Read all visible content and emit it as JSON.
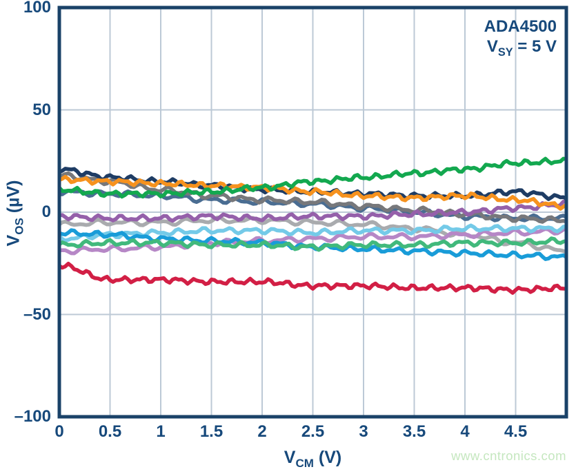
{
  "annotation": {
    "line1": "ADA4500",
    "line2_base": "V",
    "line2_sub": "SY",
    "line2_rest": " = 5 V"
  },
  "x_axis": {
    "base": "V",
    "sub": "CM",
    "unit": " (V)"
  },
  "y_axis": {
    "base": "V",
    "sub": "OS",
    "unit": "  (µV)"
  },
  "watermark": "www.cntronics.com",
  "colors": {
    "axis_border": "#1a4268",
    "text": "#17497b",
    "gridline": "#bcc9d6",
    "watermark": "#c5e7bf",
    "background": "#ffffff"
  },
  "chart_data": {
    "type": "line",
    "title": "",
    "xlabel": "V_CM (V)",
    "ylabel": "V_OS (uV)",
    "xlim": [
      0,
      5
    ],
    "ylim": [
      -100,
      100
    ],
    "grid": true,
    "x_grid_step": 0.5,
    "y_grid_step": 50,
    "legend": "none",
    "x_tick_labels": [
      "0",
      "0.5",
      "1",
      "1.5",
      "2",
      "2.5",
      "3",
      "3.5",
      "4",
      "4.5"
    ],
    "x_tick_values": [
      0,
      0.5,
      1,
      1.5,
      2,
      2.5,
      3,
      3.5,
      4,
      4.5
    ],
    "y_tick_labels": [
      "100",
      "50",
      "0",
      "–50",
      "–100"
    ],
    "y_tick_values": [
      100,
      50,
      0,
      -50,
      -100
    ],
    "x_values": [
      0,
      0.5,
      1,
      1.5,
      2,
      2.5,
      3,
      3.5,
      4,
      4.5,
      5
    ],
    "series": [
      {
        "name": "unit-lightgray",
        "color": "#a9abae",
        "values": [
          -6,
          -5,
          -5,
          -4,
          -4,
          -5,
          -6,
          -8,
          -11,
          -15,
          -19
        ]
      },
      {
        "name": "unit-orchid",
        "color": "#b687c6",
        "values": [
          -19,
          -18,
          -17,
          -15,
          -14,
          -13,
          -12,
          -12,
          -11,
          -10,
          -9
        ]
      },
      {
        "name": "unit-slate",
        "color": "#4a6d92",
        "values": [
          10,
          9,
          8,
          6,
          5,
          4,
          2,
          0,
          -2,
          -3,
          -3
        ]
      },
      {
        "name": "unit-gray",
        "color": "#77787b",
        "values": [
          18,
          15,
          11,
          8,
          6,
          5,
          3,
          1,
          -1,
          -3,
          -4
        ]
      },
      {
        "name": "unit-skyblue",
        "color": "#74cae8",
        "values": [
          -13,
          -11,
          -10,
          -9,
          -9,
          -10,
          -9,
          -9,
          -8,
          -8,
          -8
        ]
      },
      {
        "name": "unit-cyan",
        "color": "#199cd8",
        "values": [
          -10,
          -11,
          -13,
          -14,
          -15,
          -17,
          -18,
          -19,
          -20,
          -21,
          -22
        ]
      },
      {
        "name": "unit-mediumgreen",
        "color": "#41b97c",
        "values": [
          -16,
          -15,
          -15,
          -16,
          -16,
          -17,
          -16,
          -16,
          -15,
          -15,
          -14
        ]
      },
      {
        "name": "unit-purple",
        "color": "#9560aa",
        "values": [
          -2,
          -3,
          -3,
          -2,
          -3,
          -2,
          -2,
          -1,
          0,
          2,
          4
        ]
      },
      {
        "name": "unit-navy",
        "color": "#1e3c64",
        "values": [
          21,
          17,
          15,
          13,
          11,
          10,
          9,
          8,
          8,
          10,
          7
        ]
      },
      {
        "name": "unit-orange",
        "color": "#f6921e",
        "values": [
          16,
          15,
          14,
          13,
          12,
          10,
          8,
          7,
          8,
          6,
          3
        ]
      },
      {
        "name": "unit-green",
        "color": "#13a84f",
        "values": [
          11,
          9,
          9,
          10,
          12,
          15,
          17,
          19,
          21,
          24,
          25
        ]
      },
      {
        "name": "unit-red",
        "color": "#d21f45",
        "values": [
          -26,
          -33,
          -33,
          -34,
          -34,
          -36,
          -36,
          -37,
          -37,
          -38,
          -37
        ]
      }
    ]
  }
}
